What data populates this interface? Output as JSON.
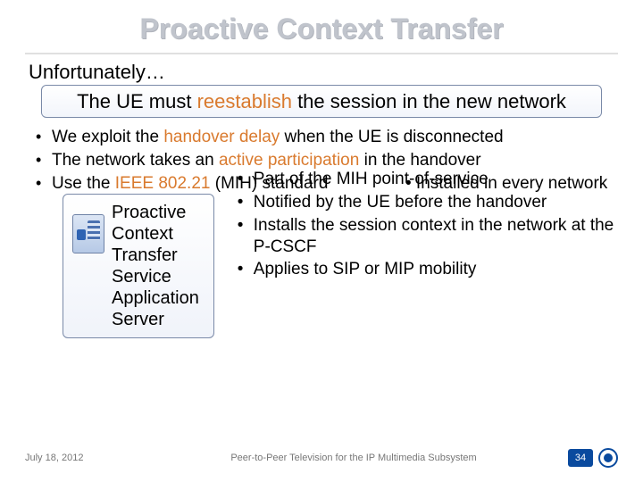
{
  "title": "Proactive Context Transfer",
  "lead": "Unfortunately…",
  "callout": {
    "pre": "The UE must ",
    "hl": "reestablish",
    "post": " the session in the new network"
  },
  "bullets": {
    "b1_pre": "We exploit the ",
    "b1_hl": "handover delay",
    "b1_post": " when the UE is disconnected",
    "b2_pre": "The network takes an ",
    "b2_hl": "active participation",
    "b2_post": " in the handover",
    "b3_pre": "Use the ",
    "b3_hl": "IEEE 802.21",
    "b3_post": " (MIH) standard"
  },
  "overlap_text": "• Installed in every network",
  "pctss": {
    "line1": "Proactive",
    "line2": "Context",
    "line3": "Transfer",
    "line4": "Service",
    "line5": "Application",
    "line6": "Server"
  },
  "right": {
    "r1": "Part of the MIH point-of-service",
    "r2": "Notified by the UE before the handover",
    "r3": "Installs the session context in the network at the P-CSCF",
    "r4": "Applies to SIP or MIP mobility"
  },
  "footer": {
    "date": "July 18, 2012",
    "title": "Peer-to-Peer Television for the IP Multimedia Subsystem",
    "page": "34"
  },
  "colors": {
    "title_gray": "#c0c4cc",
    "highlight_orange": "#d97a2e",
    "box_border": "#7a8aa8",
    "brand_blue": "#0a4a9e"
  }
}
